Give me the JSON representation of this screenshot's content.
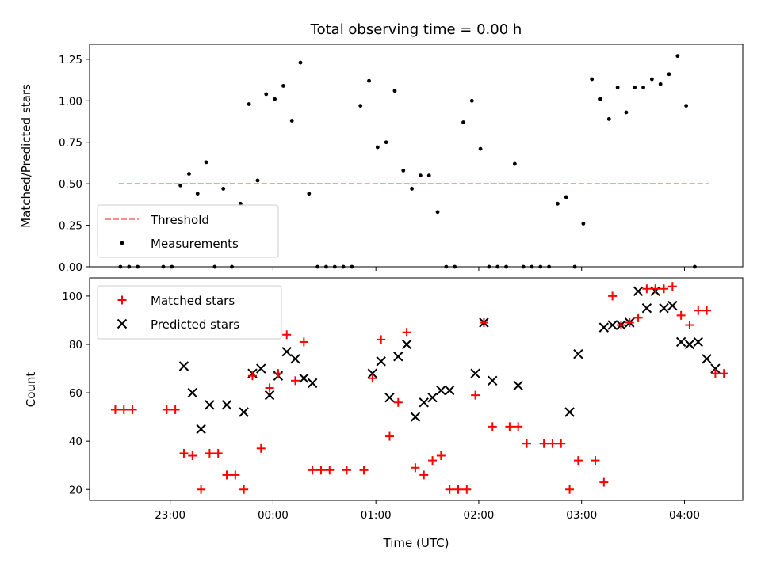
{
  "chart_data": [
    {
      "type": "scatter",
      "title": "Total observing time = 0.00 h",
      "ylabel": "Matched/Predicted stars",
      "ylim": [
        0,
        1.34
      ],
      "yticks": [
        0.0,
        0.25,
        0.5,
        0.75,
        1.0,
        1.25
      ],
      "ytick_labels": [
        "0.00",
        "0.25",
        "0.50",
        "0.75",
        "1.00",
        "1.25"
      ],
      "xlim": [
        "22:13",
        "04:34"
      ],
      "legend_placement": "lower-left",
      "threshold": {
        "name": "Threshold",
        "value": 0.5,
        "x_range": [
          "22:30",
          "04:14"
        ],
        "color": "#ff7f7f",
        "style": "dashed"
      },
      "series": [
        {
          "name": "Measurements",
          "color": "#000000",
          "marker": "dot",
          "points": [
            [
              "22:31",
              0.0
            ],
            [
              "22:36",
              0.0
            ],
            [
              "22:41",
              0.0
            ],
            [
              "22:56",
              0.0
            ],
            [
              "23:01",
              0.0
            ],
            [
              "23:06",
              0.49
            ],
            [
              "23:11",
              0.56
            ],
            [
              "23:16",
              0.44
            ],
            [
              "23:21",
              0.63
            ],
            [
              "23:26",
              0.0
            ],
            [
              "23:31",
              0.47
            ],
            [
              "23:36",
              0.0
            ],
            [
              "23:41",
              0.38
            ],
            [
              "23:46",
              0.98
            ],
            [
              "23:51",
              0.52
            ],
            [
              "23:56",
              1.04
            ],
            [
              "24:01",
              1.01
            ],
            [
              "24:06",
              1.09
            ],
            [
              "24:11",
              0.88
            ],
            [
              "24:16",
              1.23
            ],
            [
              "24:21",
              0.44
            ],
            [
              "24:26",
              0.0
            ],
            [
              "24:31",
              0.0
            ],
            [
              "24:36",
              0.0
            ],
            [
              "24:41",
              0.0
            ],
            [
              "24:46",
              0.0
            ],
            [
              "24:51",
              0.97
            ],
            [
              "24:56",
              1.12
            ],
            [
              "25:01",
              0.72
            ],
            [
              "25:06",
              0.75
            ],
            [
              "25:11",
              1.06
            ],
            [
              "25:16",
              0.58
            ],
            [
              "25:21",
              0.47
            ],
            [
              "25:26",
              0.55
            ],
            [
              "25:31",
              0.55
            ],
            [
              "25:36",
              0.33
            ],
            [
              "25:41",
              0.0
            ],
            [
              "25:46",
              0.0
            ],
            [
              "25:51",
              0.87
            ],
            [
              "25:56",
              1.0
            ],
            [
              "26:01",
              0.71
            ],
            [
              "26:06",
              0.0
            ],
            [
              "26:11",
              0.0
            ],
            [
              "26:16",
              0.0
            ],
            [
              "26:21",
              0.62
            ],
            [
              "26:26",
              0.0
            ],
            [
              "26:31",
              0.0
            ],
            [
              "26:36",
              0.0
            ],
            [
              "26:41",
              0.0
            ],
            [
              "26:46",
              0.38
            ],
            [
              "26:51",
              0.42
            ],
            [
              "26:56",
              0.0
            ],
            [
              "27:01",
              0.26
            ],
            [
              "27:06",
              1.13
            ],
            [
              "27:11",
              1.01
            ],
            [
              "27:16",
              0.89
            ],
            [
              "27:21",
              1.08
            ],
            [
              "27:26",
              0.93
            ],
            [
              "27:31",
              1.08
            ],
            [
              "27:36",
              1.08
            ],
            [
              "27:41",
              1.13
            ],
            [
              "27:46",
              1.1
            ],
            [
              "27:51",
              1.16
            ],
            [
              "27:56",
              1.27
            ],
            [
              "28:01",
              0.97
            ],
            [
              "28:06",
              0.0
            ]
          ]
        }
      ]
    },
    {
      "type": "scatter",
      "xlabel": "Time (UTC)",
      "ylabel": "Count",
      "ylim": [
        15.5,
        107.5
      ],
      "yticks": [
        20,
        40,
        60,
        80,
        100
      ],
      "xlim": [
        "22:13",
        "04:34"
      ],
      "xticks": [
        "23:00",
        "00:00",
        "01:00",
        "02:00",
        "03:00",
        "04:00"
      ],
      "legend_placement": "upper-left",
      "series": [
        {
          "name": "Matched stars",
          "color": "#ff0000",
          "marker": "plus",
          "points": [
            [
              "22:28",
              53
            ],
            [
              "22:33",
              53
            ],
            [
              "22:38",
              53
            ],
            [
              "22:58",
              53
            ],
            [
              "23:03",
              53
            ],
            [
              "23:08",
              35
            ],
            [
              "23:13",
              34
            ],
            [
              "23:18",
              20
            ],
            [
              "23:23",
              35
            ],
            [
              "23:28",
              35
            ],
            [
              "23:33",
              26
            ],
            [
              "23:38",
              26
            ],
            [
              "23:43",
              20
            ],
            [
              "23:48",
              67
            ],
            [
              "23:53",
              37
            ],
            [
              "23:58",
              62
            ],
            [
              "24:03",
              68
            ],
            [
              "24:08",
              84
            ],
            [
              "24:13",
              65
            ],
            [
              "24:18",
              81
            ],
            [
              "24:23",
              28
            ],
            [
              "24:28",
              28
            ],
            [
              "24:33",
              28
            ],
            [
              "24:43",
              28
            ],
            [
              "24:53",
              28
            ],
            [
              "24:58",
              66
            ],
            [
              "25:03",
              82
            ],
            [
              "25:08",
              42
            ],
            [
              "25:13",
              56
            ],
            [
              "25:18",
              85
            ],
            [
              "25:23",
              29
            ],
            [
              "25:28",
              26
            ],
            [
              "25:33",
              32
            ],
            [
              "25:38",
              34
            ],
            [
              "25:43",
              20
            ],
            [
              "25:48",
              20
            ],
            [
              "25:53",
              20
            ],
            [
              "25:58",
              59
            ],
            [
              "26:03",
              89
            ],
            [
              "26:08",
              46
            ],
            [
              "26:18",
              46
            ],
            [
              "26:23",
              46
            ],
            [
              "26:28",
              39
            ],
            [
              "26:38",
              39
            ],
            [
              "26:43",
              39
            ],
            [
              "26:48",
              39
            ],
            [
              "26:53",
              20
            ],
            [
              "26:58",
              32
            ],
            [
              "27:08",
              32
            ],
            [
              "27:13",
              23
            ],
            [
              "27:18",
              100
            ],
            [
              "27:23",
              88
            ],
            [
              "27:28",
              89
            ],
            [
              "27:33",
              91
            ],
            [
              "27:38",
              103
            ],
            [
              "27:43",
              103
            ],
            [
              "27:48",
              103
            ],
            [
              "27:53",
              104
            ],
            [
              "27:58",
              92
            ],
            [
              "28:03",
              88
            ],
            [
              "28:08",
              94
            ],
            [
              "28:13",
              94
            ],
            [
              "28:18",
              68
            ],
            [
              "28:23",
              68
            ]
          ]
        },
        {
          "name": "Predicted stars",
          "color": "#000000",
          "marker": "x",
          "points": [
            [
              "23:08",
              71
            ],
            [
              "23:13",
              60
            ],
            [
              "23:18",
              45
            ],
            [
              "23:23",
              55
            ],
            [
              "23:33",
              55
            ],
            [
              "23:43",
              52
            ],
            [
              "23:48",
              68
            ],
            [
              "23:53",
              70
            ],
            [
              "23:58",
              59
            ],
            [
              "24:03",
              67
            ],
            [
              "24:08",
              77
            ],
            [
              "24:13",
              74
            ],
            [
              "24:18",
              66
            ],
            [
              "24:23",
              64
            ],
            [
              "24:58",
              68
            ],
            [
              "25:03",
              73
            ],
            [
              "25:08",
              58
            ],
            [
              "25:13",
              75
            ],
            [
              "25:18",
              80
            ],
            [
              "25:23",
              50
            ],
            [
              "25:28",
              56
            ],
            [
              "25:33",
              58
            ],
            [
              "25:38",
              61
            ],
            [
              "25:43",
              61
            ],
            [
              "25:58",
              68
            ],
            [
              "26:03",
              89
            ],
            [
              "26:08",
              65
            ],
            [
              "26:23",
              63
            ],
            [
              "26:53",
              52
            ],
            [
              "26:58",
              76
            ],
            [
              "27:13",
              87
            ],
            [
              "27:18",
              88
            ],
            [
              "27:23",
              88
            ],
            [
              "27:28",
              89
            ],
            [
              "27:33",
              102
            ],
            [
              "27:38",
              95
            ],
            [
              "27:43",
              102
            ],
            [
              "27:48",
              95
            ],
            [
              "27:53",
              96
            ],
            [
              "27:58",
              81
            ],
            [
              "28:03",
              80
            ],
            [
              "28:08",
              81
            ],
            [
              "28:13",
              74
            ],
            [
              "28:18",
              70
            ]
          ]
        }
      ]
    }
  ]
}
